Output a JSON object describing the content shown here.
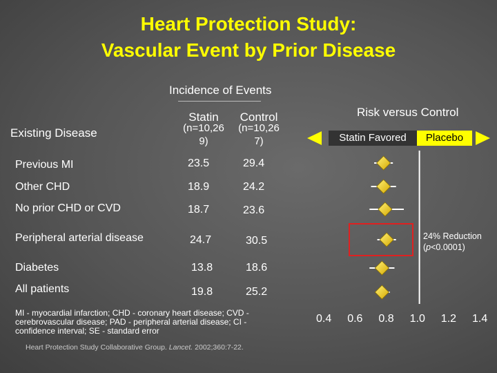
{
  "title_line1": "Heart Protection Study:",
  "title_line2": "Vascular Event by Prior Disease",
  "incidence_header": "Incidence of Events",
  "existing_disease_header": "Existing Disease",
  "statin_header": "Statin",
  "statin_n": "(n=10,26",
  "statin_n2": "9)",
  "control_header": "Control",
  "control_n": "(n=10,26",
  "control_n2": "7)",
  "risk_header": "Risk versus Control",
  "statin_favored": "Statin Favored",
  "placebo": "Placebo",
  "reduction_line1": "24% Reduction",
  "reduction_p_italic": "p",
  "reduction_p_rest": "<0.0001)",
  "reduction_paren": "(",
  "footnote": "MI - myocardial infarction; CHD - coronary heart disease; CVD - cerebrovascular disease; PAD - peripheral arterial disease; CI - confidence interval; SE - standard error",
  "citation_pre": "Heart Protection Study Collaborative Group. ",
  "citation_journal": "Lancet.",
  "citation_post": " 2002;360:7-22.",
  "colors": {
    "title": "#ffff00",
    "marker": "#ffd700",
    "highlight": "#e02020",
    "arrow": "#ffff00",
    "line": "#ffffff"
  },
  "chart_data": {
    "type": "forest",
    "x_ticks": [
      "0.4",
      "0.6",
      "0.8",
      "1.0",
      "1.2",
      "1.4"
    ],
    "x_tick_values": [
      0.4,
      0.6,
      0.8,
      1.0,
      1.2,
      1.4
    ],
    "reference_line": 1.0,
    "rows": [
      {
        "label": "Previous MI",
        "statin": "23.5",
        "control": "29.4",
        "ratio": 0.77,
        "ci_low": 0.71,
        "ci_high": 0.83
      },
      {
        "label": "Other CHD",
        "statin": "18.9",
        "control": "24.2",
        "ratio": 0.77,
        "ci_low": 0.69,
        "ci_high": 0.85
      },
      {
        "label": "No prior CHD or CVD",
        "statin": "18.7",
        "control": "23.6",
        "ratio": 0.78,
        "ci_low": 0.68,
        "ci_high": 0.9
      },
      {
        "label": "Peripheral arterial disease",
        "statin": "24.7",
        "control": "30.5",
        "ratio": 0.79,
        "ci_low": 0.73,
        "ci_high": 0.85
      },
      {
        "label": "Diabetes",
        "statin": "13.8",
        "control": "18.6",
        "ratio": 0.76,
        "ci_low": 0.68,
        "ci_high": 0.84
      },
      {
        "label": "All patients",
        "statin": "19.8",
        "control": "25.2",
        "ratio": 0.76,
        "ci_low": 0.72,
        "ci_high": 0.81
      }
    ]
  }
}
